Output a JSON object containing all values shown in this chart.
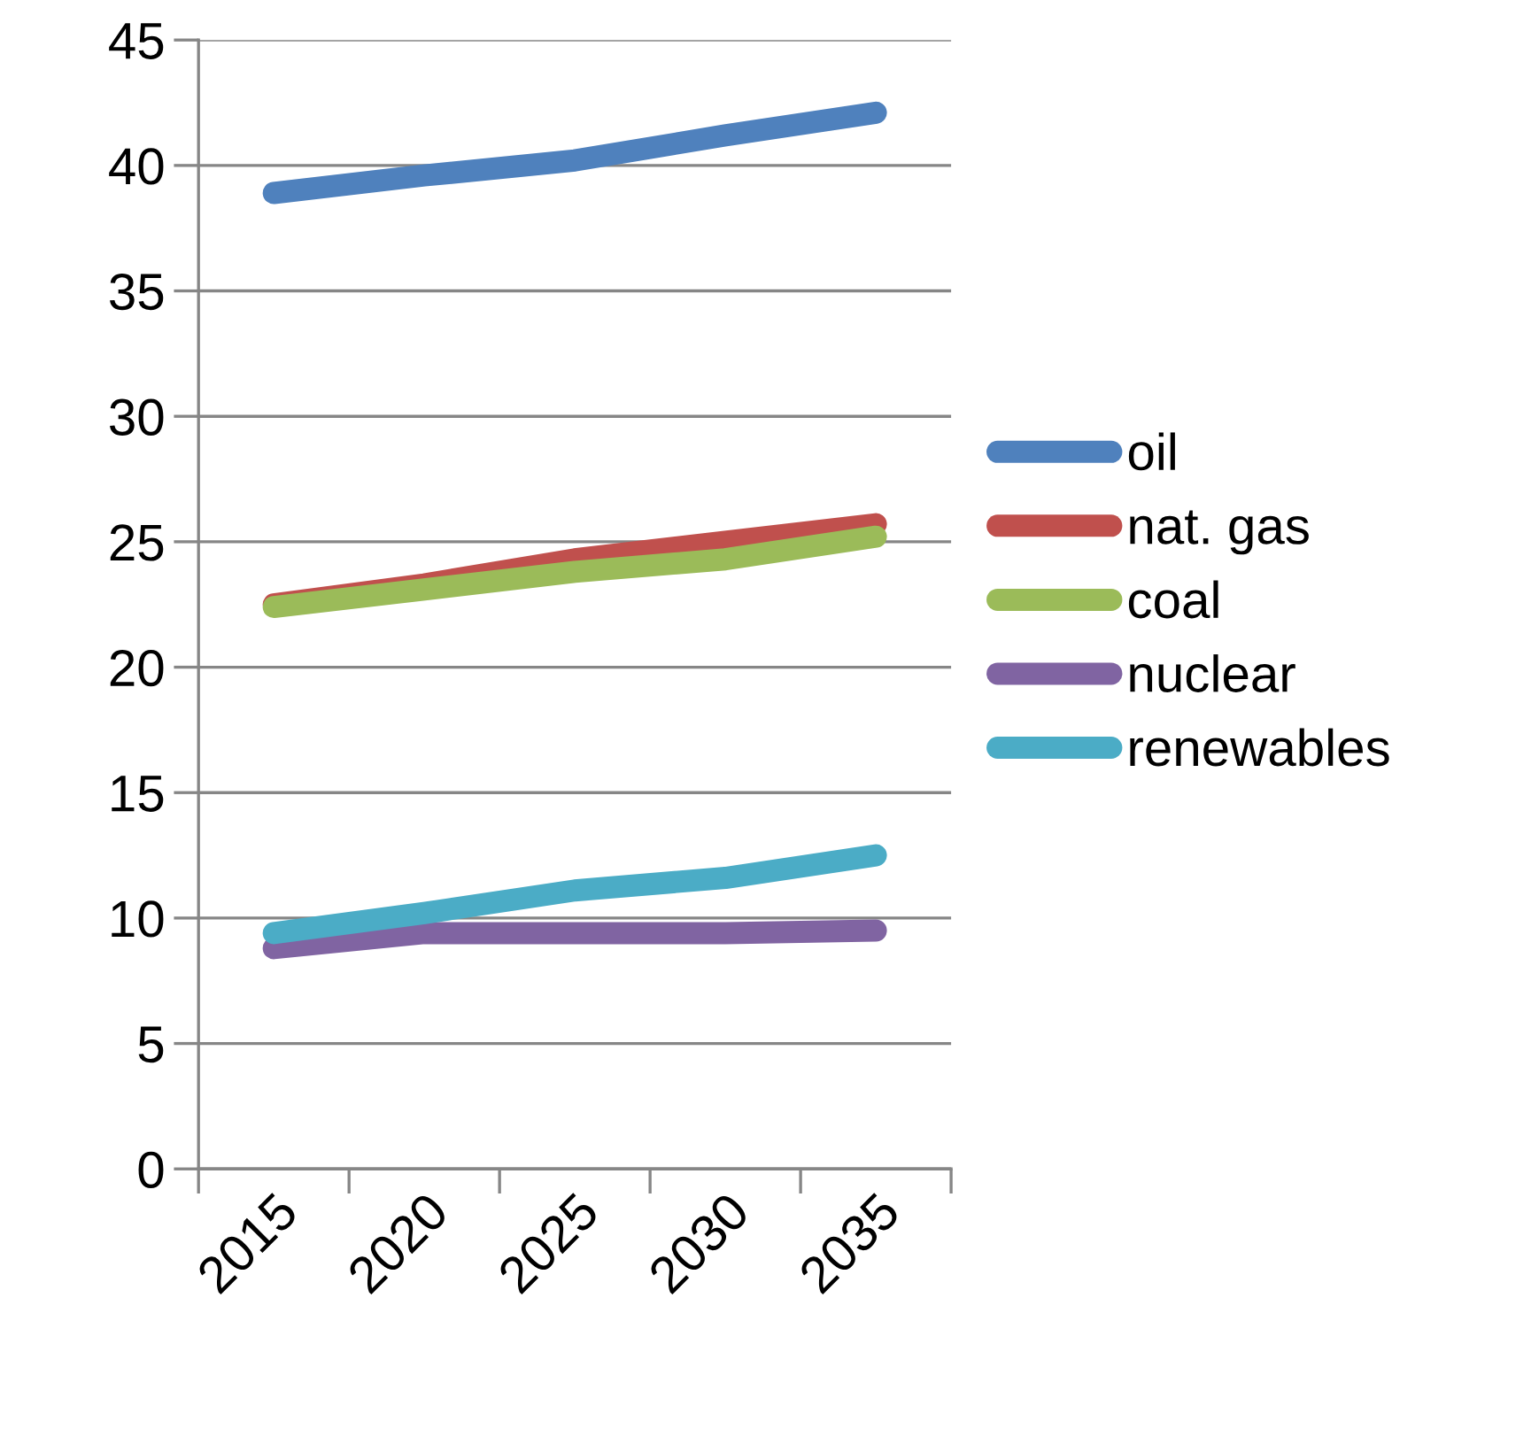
{
  "chart_data": {
    "type": "line",
    "categories": [
      "2015",
      "2020",
      "2025",
      "2030",
      "2035"
    ],
    "series": [
      {
        "name": "oil",
        "color": "#4f81bd",
        "values": [
          38.9,
          39.6,
          40.2,
          41.2,
          42.1
        ]
      },
      {
        "name": "nat. gas",
        "color": "#c0504d",
        "values": [
          22.5,
          23.3,
          24.3,
          25.0,
          25.7
        ]
      },
      {
        "name": "coal",
        "color": "#9bbb59",
        "values": [
          22.4,
          23.1,
          23.8,
          24.3,
          25.2
        ]
      },
      {
        "name": "nuclear",
        "color": "#8064a2",
        "values": [
          8.8,
          9.4,
          9.4,
          9.4,
          9.5
        ]
      },
      {
        "name": "renewables",
        "color": "#4bacc6",
        "values": [
          9.4,
          10.2,
          11.1,
          11.6,
          12.5
        ]
      }
    ],
    "ylim": [
      0,
      45
    ],
    "yticks": [
      0,
      5,
      10,
      15,
      20,
      25,
      30,
      35,
      40,
      45
    ],
    "grid": "y",
    "legend": "right",
    "line_style": "solid"
  }
}
